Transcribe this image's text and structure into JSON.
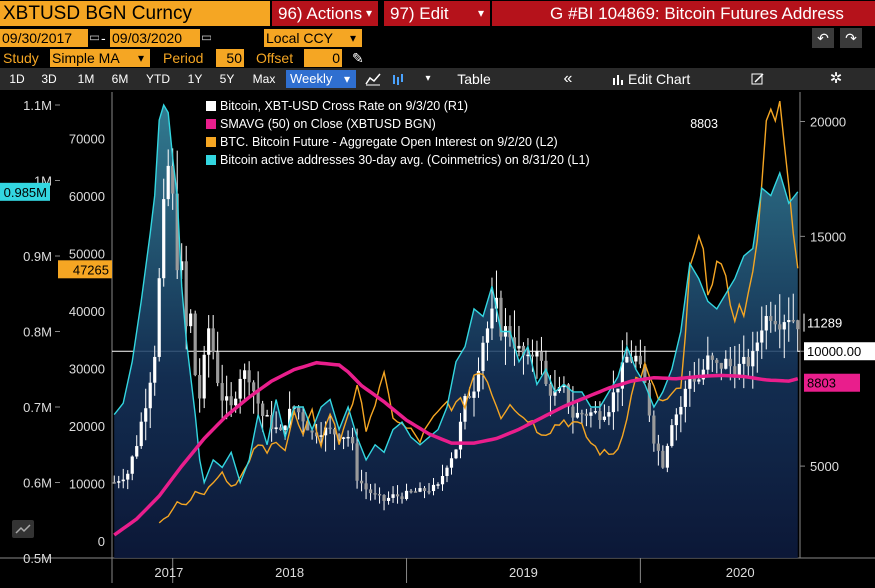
{
  "header": {
    "ticker": "XBTUSD BGN Curncy",
    "actions_label": "96) Actions",
    "edit_label": "97) Edit",
    "title": "G #BI 104869: Bitcoin Futures Address"
  },
  "controls": {
    "start_date": "09/30/2017",
    "date_separator": "-",
    "end_date": "09/03/2020",
    "currency": "Local CCY",
    "study_label": "Study",
    "study_value": "Simple MA",
    "period_label": "Period",
    "period_value": "50",
    "offset_label": "Offset",
    "offset_value": "0",
    "undo_icon": "undo-icon",
    "redo_icon": "redo-icon",
    "pencil_icon": "pencil-icon"
  },
  "toolbar": {
    "ranges": [
      "1D",
      "3D",
      "1M",
      "6M",
      "YTD",
      "1Y",
      "5Y",
      "Max"
    ],
    "frequency": "Weekly",
    "table_label": "Table",
    "edit_chart_label": "Edit Chart",
    "collapse_label": "«"
  },
  "chart_data": {
    "type": "line",
    "legend": [
      {
        "text": "Bitcoin, XBT-USD Cross Rate  on 9/3/20 (R1)",
        "value": "",
        "color": "#ffffff"
      },
      {
        "text": "SMAVG (50)  on Close (XBTUSD BGN)",
        "value": "8803",
        "color": "#e91e8c"
      },
      {
        "text": "BTC. Bitcoin Future - Aggregate Open Interest on 9/2/20 (L2)",
        "value": "",
        "color": "#f5a623"
      },
      {
        "text": "Bitcoin active addresses 30-day avg. (Coinmetrics) on 8/31/20 (L1)",
        "value": "",
        "color": "#33d6e0"
      }
    ],
    "x_labels": [
      "2017",
      "2018",
      "2019",
      "2020"
    ],
    "left_axis_L1": {
      "ticks": [
        "0.5M",
        "0.6M",
        "0.7M",
        "0.8M",
        "0.9M",
        "1M",
        "1.1M"
      ],
      "ylim": [
        0.5,
        1.1
      ],
      "unit": "M"
    },
    "left_axis_L2": {
      "ticks": [
        "0",
        "10000",
        "20000",
        "30000",
        "40000",
        "50000",
        "60000",
        "70000"
      ],
      "ylim": [
        -3000,
        75000
      ]
    },
    "right_axis_R1": {
      "ticks": [
        "5000",
        "10000",
        "15000",
        "20000"
      ],
      "ylim": [
        1000,
        20500
      ]
    },
    "markers": {
      "active_addresses_last": "0.985M",
      "open_interest_last": "47265",
      "price_last": "11289",
      "reference_line": "10000.00",
      "sma_last": "8803"
    },
    "reference_level": 10000,
    "weeks": 153,
    "year_ticks": [
      13,
      65,
      117
    ],
    "price_anchors": [
      [
        0,
        4300
      ],
      [
        3,
        4700
      ],
      [
        5,
        6000
      ],
      [
        7,
        7800
      ],
      [
        9,
        10000
      ],
      [
        10,
        13000
      ],
      [
        11,
        16000
      ],
      [
        12,
        18000
      ],
      [
        13,
        16500
      ],
      [
        14,
        14000
      ],
      [
        15,
        13500
      ],
      [
        16,
        11000
      ],
      [
        17,
        11500
      ],
      [
        18,
        9000
      ],
      [
        19,
        8000
      ],
      [
        20,
        9500
      ],
      [
        21,
        11000
      ],
      [
        22,
        10000
      ],
      [
        23,
        8800
      ],
      [
        24,
        8000
      ],
      [
        26,
        7500
      ],
      [
        28,
        9000
      ],
      [
        30,
        9000
      ],
      [
        31,
        8300
      ],
      [
        33,
        7200
      ],
      [
        35,
        6800
      ],
      [
        37,
        6400
      ],
      [
        38,
        7000
      ],
      [
        40,
        7600
      ],
      [
        42,
        7100
      ],
      [
        44,
        6400
      ],
      [
        46,
        6600
      ],
      [
        48,
        6500
      ],
      [
        50,
        6400
      ],
      [
        52,
        6300
      ],
      [
        53,
        5800
      ],
      [
        54,
        4500
      ],
      [
        56,
        4000
      ],
      [
        58,
        3700
      ],
      [
        60,
        3500
      ],
      [
        62,
        3700
      ],
      [
        64,
        3700
      ],
      [
        66,
        3850
      ],
      [
        68,
        3900
      ],
      [
        70,
        4000
      ],
      [
        72,
        4100
      ],
      [
        74,
        5100
      ],
      [
        76,
        5800
      ],
      [
        78,
        7800
      ],
      [
        80,
        8500
      ],
      [
        82,
        10500
      ],
      [
        84,
        11500
      ],
      [
        85,
        11900
      ],
      [
        86,
        11000
      ],
      [
        88,
        10800
      ],
      [
        90,
        10000
      ],
      [
        92,
        9500
      ],
      [
        94,
        10300
      ],
      [
        96,
        8500
      ],
      [
        98,
        8100
      ],
      [
        100,
        8300
      ],
      [
        102,
        7200
      ],
      [
        104,
        7300
      ],
      [
        106,
        7300
      ],
      [
        108,
        7300
      ],
      [
        110,
        7600
      ],
      [
        112,
        8600
      ],
      [
        114,
        9700
      ],
      [
        116,
        9700
      ],
      [
        118,
        8500
      ],
      [
        120,
        6200
      ],
      [
        122,
        5100
      ],
      [
        124,
        7000
      ],
      [
        126,
        7600
      ],
      [
        128,
        8900
      ],
      [
        130,
        8800
      ],
      [
        132,
        9600
      ],
      [
        134,
        9300
      ],
      [
        136,
        9500
      ],
      [
        138,
        9200
      ],
      [
        140,
        9400
      ],
      [
        142,
        9700
      ],
      [
        144,
        11200
      ],
      [
        146,
        11700
      ],
      [
        148,
        11400
      ],
      [
        150,
        11600
      ],
      [
        152,
        11289
      ]
    ],
    "sma_anchors": [
      [
        0,
        2000
      ],
      [
        5,
        2700
      ],
      [
        10,
        3700
      ],
      [
        15,
        5000
      ],
      [
        20,
        6200
      ],
      [
        25,
        7200
      ],
      [
        30,
        8000
      ],
      [
        35,
        8700
      ],
      [
        40,
        9200
      ],
      [
        45,
        9500
      ],
      [
        50,
        9400
      ],
      [
        52,
        9100
      ],
      [
        55,
        8500
      ],
      [
        60,
        7800
      ],
      [
        65,
        7000
      ],
      [
        70,
        6400
      ],
      [
        75,
        6000
      ],
      [
        80,
        6000
      ],
      [
        85,
        6200
      ],
      [
        90,
        6600
      ],
      [
        95,
        7100
      ],
      [
        100,
        7600
      ],
      [
        105,
        8000
      ],
      [
        110,
        8400
      ],
      [
        115,
        8700
      ],
      [
        120,
        8850
      ],
      [
        125,
        8800
      ],
      [
        130,
        8900
      ],
      [
        135,
        8950
      ],
      [
        140,
        8900
      ],
      [
        145,
        8750
      ],
      [
        150,
        8700
      ],
      [
        152,
        8803
      ]
    ],
    "oi_anchors": [
      [
        10,
        3000
      ],
      [
        12,
        4500
      ],
      [
        14,
        7000
      ],
      [
        16,
        6000
      ],
      [
        18,
        9000
      ],
      [
        20,
        8000
      ],
      [
        22,
        10500
      ],
      [
        24,
        12000
      ],
      [
        26,
        9500
      ],
      [
        28,
        11000
      ],
      [
        30,
        13500
      ],
      [
        32,
        17000
      ],
      [
        34,
        15000
      ],
      [
        36,
        18000
      ],
      [
        38,
        16000
      ],
      [
        40,
        22000
      ],
      [
        42,
        18000
      ],
      [
        44,
        22000
      ],
      [
        46,
        17000
      ],
      [
        48,
        22500
      ],
      [
        50,
        17000
      ],
      [
        52,
        22500
      ],
      [
        54,
        26000
      ],
      [
        56,
        20000
      ],
      [
        58,
        24000
      ],
      [
        60,
        28000
      ],
      [
        62,
        22000
      ],
      [
        64,
        20000
      ],
      [
        66,
        19000
      ],
      [
        68,
        17500
      ],
      [
        70,
        20000
      ],
      [
        72,
        22000
      ],
      [
        74,
        24000
      ],
      [
        76,
        23500
      ],
      [
        78,
        24000
      ],
      [
        80,
        29000
      ],
      [
        82,
        30000
      ],
      [
        84,
        26000
      ],
      [
        86,
        22000
      ],
      [
        88,
        24500
      ],
      [
        90,
        22000
      ],
      [
        92,
        21500
      ],
      [
        94,
        19500
      ],
      [
        96,
        19000
      ],
      [
        98,
        20000
      ],
      [
        100,
        21000
      ],
      [
        102,
        20500
      ],
      [
        104,
        19500
      ],
      [
        106,
        17000
      ],
      [
        108,
        15500
      ],
      [
        110,
        15000
      ],
      [
        112,
        16000
      ],
      [
        114,
        22000
      ],
      [
        116,
        28000
      ],
      [
        118,
        30000
      ],
      [
        120,
        26000
      ],
      [
        122,
        24000
      ],
      [
        124,
        25000
      ],
      [
        126,
        26000
      ],
      [
        128,
        46000
      ],
      [
        130,
        52000
      ],
      [
        132,
        45000
      ],
      [
        134,
        48000
      ],
      [
        136,
        44000
      ],
      [
        138,
        40000
      ],
      [
        140,
        40000
      ],
      [
        142,
        45000
      ],
      [
        144,
        64000
      ],
      [
        146,
        78000
      ],
      [
        148,
        74000
      ],
      [
        150,
        60000
      ],
      [
        152,
        47265
      ]
    ],
    "aa_anchors": [
      [
        0,
        0.69
      ],
      [
        2,
        0.705
      ],
      [
        4,
        0.76
      ],
      [
        6,
        0.84
      ],
      [
        8,
        0.93
      ],
      [
        9,
        0.98
      ],
      [
        10,
        1.08
      ],
      [
        11,
        1.1
      ],
      [
        12,
        1.09
      ],
      [
        13,
        1.03
      ],
      [
        14,
        0.98
      ],
      [
        15,
        0.86
      ],
      [
        16,
        0.79
      ],
      [
        17,
        0.74
      ],
      [
        18,
        0.69
      ],
      [
        19,
        0.63
      ],
      [
        20,
        0.6
      ],
      [
        22,
        0.63
      ],
      [
        24,
        0.62
      ],
      [
        26,
        0.64
      ],
      [
        28,
        0.6
      ],
      [
        30,
        0.63
      ],
      [
        32,
        0.69
      ],
      [
        34,
        0.65
      ],
      [
        36,
        0.71
      ],
      [
        38,
        0.66
      ],
      [
        40,
        0.7
      ],
      [
        42,
        0.7
      ],
      [
        44,
        0.67
      ],
      [
        46,
        0.7
      ],
      [
        48,
        0.71
      ],
      [
        50,
        0.67
      ],
      [
        52,
        0.7
      ],
      [
        54,
        0.66
      ],
      [
        56,
        0.63
      ],
      [
        58,
        0.65
      ],
      [
        60,
        0.64
      ],
      [
        62,
        0.67
      ],
      [
        64,
        0.68
      ],
      [
        66,
        0.66
      ],
      [
        68,
        0.65
      ],
      [
        70,
        0.66
      ],
      [
        72,
        0.67
      ],
      [
        74,
        0.7
      ],
      [
        76,
        0.76
      ],
      [
        78,
        0.78
      ],
      [
        80,
        0.83
      ],
      [
        82,
        0.82
      ],
      [
        84,
        0.86
      ],
      [
        86,
        0.8
      ],
      [
        88,
        0.8
      ],
      [
        90,
        0.76
      ],
      [
        92,
        0.78
      ],
      [
        94,
        0.73
      ],
      [
        96,
        0.75
      ],
      [
        98,
        0.72
      ],
      [
        100,
        0.73
      ],
      [
        102,
        0.72
      ],
      [
        104,
        0.72
      ],
      [
        106,
        0.7
      ],
      [
        108,
        0.7
      ],
      [
        110,
        0.72
      ],
      [
        112,
        0.74
      ],
      [
        114,
        0.78
      ],
      [
        116,
        0.75
      ],
      [
        118,
        0.73
      ],
      [
        120,
        0.7
      ],
      [
        122,
        0.72
      ],
      [
        124,
        0.75
      ],
      [
        126,
        0.8
      ],
      [
        128,
        0.89
      ],
      [
        130,
        0.87
      ],
      [
        132,
        0.84
      ],
      [
        134,
        0.83
      ],
      [
        136,
        0.85
      ],
      [
        138,
        0.87
      ],
      [
        140,
        0.9
      ],
      [
        142,
        0.91
      ],
      [
        144,
        0.99
      ],
      [
        146,
        0.98
      ],
      [
        148,
        1.01
      ],
      [
        150,
        0.97
      ],
      [
        152,
        0.985
      ]
    ]
  }
}
